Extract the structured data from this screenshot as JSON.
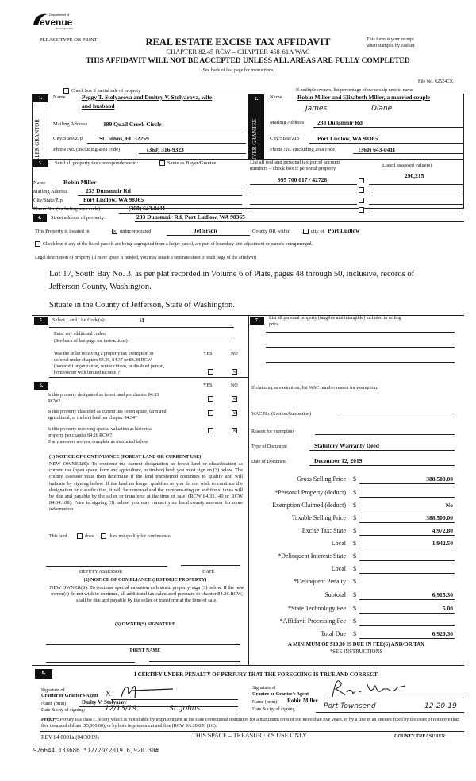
{
  "header": {
    "logo_text": "Department of Revenue Washington State",
    "please": "PLEASE TYPE OR PRINT",
    "title": "REAL ESTATE EXCISE TAX AFFIDAVIT",
    "chapter": "CHAPTER 82.45 RCW – CHAPTER 458-61A WAC",
    "warning": "THIS AFFIDAVIT WILL NOT BE ACCEPTED UNLESS ALL AREAS ARE FULLY COMPLETED",
    "see_back": "(See back of last page for instructions)",
    "receipt": "This form is your receipt when stamped by cashier.",
    "receipt_1": "This form is your receipt",
    "receipt_2": "when stamped by cashier.",
    "file_no": "File No. 62524CK"
  },
  "partial_sale": {
    "label": "Check box if partial sale of property",
    "checked": false
  },
  "multiple_owners": "If multiple owners, list percentage of ownership next to name",
  "seller": {
    "num": "1.",
    "side": "SELLER GRANTOR",
    "name_label": "Name",
    "name_1": "Peggy T. Stolyarova and Dmitry V. Stolyarova, wife",
    "name_2": "and husband",
    "addr_label": "Mailing Address",
    "addr": "189 Quail Creek Circle",
    "city_label": "City/State/Zip",
    "city": "St. Johns, FL 32259",
    "phone_label": "Phone No. (including area code)",
    "phone": "(360) 316-9323"
  },
  "buyer": {
    "num": "2.",
    "side": "BUYER GRANTEE",
    "name_label": "Name",
    "name": "Robin Miller and Elizabeth Miller, a married couple",
    "hand_1": "James",
    "hand_2": "Diane",
    "addr_label": "Mailing Address",
    "addr": "233 Dunsmuir Rd",
    "city_label": "City/State/Zip",
    "city": "Port Ludlow, WA 98365",
    "phone_label": "Phone No. (including area code)",
    "phone": "(360) 643-0411"
  },
  "correspondence": {
    "num": "3.",
    "label": "Send all property tax correspondence to:",
    "same_label": "Same as Buyer/Grantee",
    "same_checked": false,
    "name_label": "Name",
    "name": "Robin  Miller",
    "addr_label": "Mailing Address",
    "addr": "233 Dunsmuir Rd",
    "city_label": "City/State/Zip",
    "city": "Port Ludlow, WA 98365",
    "phone_label": "Phone No. (including area code)",
    "phone": "(360) 643-0411"
  },
  "parcels": {
    "label_1": "List all real and personal tax parcel account",
    "label_2": "numbers – check box if personal property",
    "value_label": "Listed assessed value(s)",
    "rows": [
      {
        "number": "995 700 017 / 42728",
        "personal": false,
        "value": "290,215"
      }
    ]
  },
  "property": {
    "num": "4.",
    "street_label": "Street address of property:",
    "street": "233 Dunsmuir Rd, Port Ludlow, WA  98365",
    "located_label": "This Property is located in",
    "unincorporated_label": "unincorporated",
    "unincorporated_checked": true,
    "county": "Jefferson",
    "county_or": "County OR  within",
    "city_label": "city of",
    "city": "Port Ludlow",
    "city_checked": false,
    "segregated_label": "Check box if any of the listed parcels are being segregated from a larger parcel, are part of boundary line adjustment or parcels being merged.",
    "segregated_checked": false,
    "legal_label": "Legal description of property (if more space is needed, you may attach a separate sheet to each page of the affidavit)",
    "legal_1": "Lot  17, South Bay No. 3, as per plat recorded in Volume 6 of Plats, pages 48 through 50, inclusive, records of",
    "legal_2": "Jefferson County, Washington.",
    "legal_3": "Situate in the County of Jefferson, State of Washington."
  },
  "land_use": {
    "num": "5.",
    "label": "Select Land Use Code(s):",
    "code": "11",
    "additional_label": "Enter any additional codes:",
    "see_back": "(See back of last page for instructions)",
    "yes": "YES",
    "no": "NO",
    "q_1": "Was the seller receiving a property tax exemption or",
    "q_2": "deferral under chapters 84.36, 84.37 or 84.38 RCW",
    "q_3": "(nonprofit organization, senior citizen, or disabled person,",
    "q_4": "homeowner with limited income)?",
    "answer": "NO"
  },
  "section6": {
    "num": "6.",
    "yes": "YES",
    "no": "NO",
    "questions": [
      {
        "l1": "Is this property designated as forest land per chapter 84.33",
        "l2": "RCW?",
        "answer": "NO"
      },
      {
        "l1": "Is this property classified as current use (open space, farm and",
        "l2": "agricultural, or timber) land per chapter 84.34?",
        "answer": "NO"
      },
      {
        "l1": "Is this property receiving special valuation as historical",
        "l2": "property per chapter 84.26 RCW?",
        "answer": "NO"
      }
    ],
    "if_yes": "If any answers are yes, complete as instructed below.",
    "notice1_title": "(1) NOTICE OF CONTINUANCE (FOREST LAND OR CURRENT USE)",
    "notice1_text": "NEW OWNER(S): To continue the current designation as forest land or classification as current use (open space, farm and agriculture, or timber) land, you must sign on (3) below. The county assessor must then determine if the land transferred continues to qualify and will indicate by signing below. If the land no longer qualifies or you do not wish to continue the designation or classification, it will be removed and the compensating or additional taxes will be due and payable by the seller or transferor at the time of sale. (RCW 84.33.140 or RCW 84.34.108). Prior to signing (3) below, you may contact your local county assessor for more information.",
    "this_land": "This land",
    "does": "does",
    "does_not": "does not  qualify for continuance",
    "deputy": "DEPUTY ASSESSOR",
    "date": "DATE",
    "notice2_title": "(2) NOTICE OF COMPLIANCE (HISTORIC PROPERTY)",
    "notice2_text": "NEW OWNER(S): To continue special valuation as historic property, sign (3) below. If the new owner(s) do not wish to continue, all additional tax calculated pursuant to chapter 84.26 RCW, shall be due and payable by the seller or transferor at the time of sale.",
    "owner_sig": "(3)  OWNER(S) SIGNATURE",
    "print_name": "PRINT NAME"
  },
  "section7": {
    "num": "7.",
    "label_1": "List all personal property (tangible and intangible) included in selling",
    "label_2": "price.",
    "exemption_label": "If claiming an exemption, list WAC number reason for exemption:",
    "wac_label": "WAC No. (Section/Subsection)",
    "reason_label": "Reason for exemption",
    "doc_type_label": "Type of Document",
    "doc_type": "Statutory Warranty Deed",
    "doc_date_label": "Date of Document",
    "doc_date": "December 12, 2019"
  },
  "financials": [
    {
      "label": "Gross Selling Price",
      "value": "388,500.00"
    },
    {
      "label": "*Personal Property (deduct)",
      "value": ""
    },
    {
      "label": "Exemption Claimed (deduct)",
      "value": "No"
    },
    {
      "label": "Taxable Selling Price",
      "value": "388,500.00"
    },
    {
      "label": "Excise Tax:  State",
      "value": "4,972.80"
    },
    {
      "label": "Local",
      "value": "1,942.50"
    },
    {
      "label": "*Delinquent Interest:  State",
      "value": ""
    },
    {
      "label": "Local",
      "value": ""
    },
    {
      "label": "*Delinquent Penalty",
      "value": ""
    },
    {
      "label": "Subtotal",
      "value": "6,915.30"
    },
    {
      "label": "*State Technology Fee",
      "value": "5.00"
    },
    {
      "label": "*Affidavit Processing Fee",
      "value": ""
    },
    {
      "label": "Total Due",
      "value": "6,920.30"
    }
  ],
  "currency": "$",
  "minimum": "A MINIMUM OF $10.00 IS DUE IN FEE(S) AND/OR TAX",
  "see_instructions": "*SEE INSTRUCTIONS",
  "certify": {
    "num": "8.",
    "title": "I CERTIFY UNDER PENALTY OF PERJURY THAT THE FOREGOING IS TRUE AND CORRECT",
    "grantor_sig_1": "Signature of",
    "grantor_sig_2": "Grantor or Grantor's Agent",
    "grantor_x": "X",
    "grantor_name_label": "Name (print)",
    "grantor_name": "Dmity V. Stolyarov",
    "grantor_date_label": "Date & city of signing:",
    "grantor_date": "12/13/19",
    "grantor_city": "St. Johns",
    "grantee_sig_1": "Signature of",
    "grantee_sig_2": "Grantee or Grantee's Agent",
    "grantee_name_label": "Name (print)",
    "grantee_name": "Robin  Miller",
    "grantee_date_label": "Date & city of signing",
    "grantee_city": "Port Townsend",
    "grantee_date": "12-20-19"
  },
  "perjury": {
    "label": "Perjury:",
    "text": "Perjury is a class C felony which is punishable by imprisonment in the state correctional institution for a maximum term of not more than five years, or by a fine in an amount fixed by the court of not more than five thousand dollars ($5,000.00), or by both imprisonment and fine (RCW 9A.20.020 (1C)."
  },
  "footer": {
    "rev": "REV 84 0001a (04/30/09)",
    "treasurer_space": "THIS SPACE – TREASURER'S USE ONLY",
    "county_treasurer": "COUNTY TREASURER",
    "stamp": "926644 133686 *12/20/2019 6,920.30#"
  }
}
